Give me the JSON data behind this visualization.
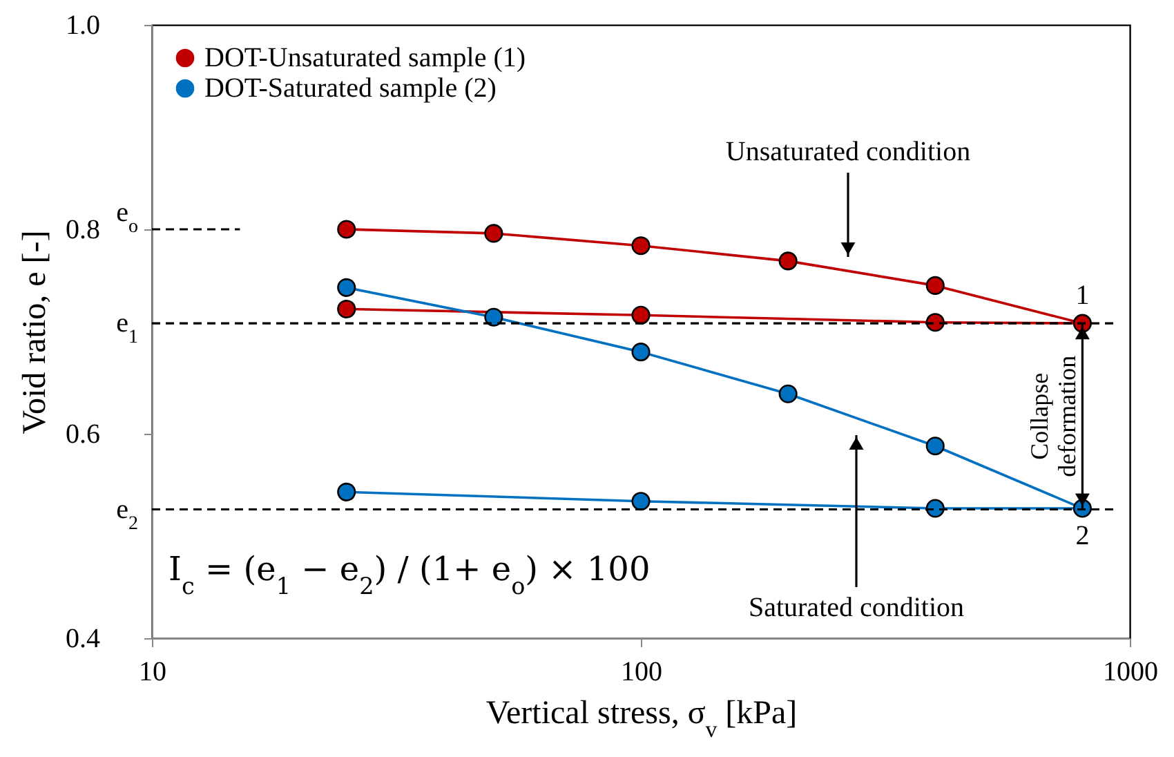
{
  "chart_data": {
    "type": "line",
    "xlabel": "Vertical stress, σ$_{v}$ [kPa]",
    "ylabel": "Void ratio, e [-]",
    "log": "x",
    "xlim": [
      10,
      1000
    ],
    "xticks": [
      10,
      100,
      1000
    ],
    "ylim": [
      0.4,
      1.0
    ],
    "yticks": [
      0.4,
      0.6,
      0.8,
      {
        "value": 1.0,
        "label": "1.0"
      }
    ],
    "legend": "top left",
    "marker": "circle",
    "line_style": "solid",
    "series": [
      {
        "name": "DOT-Unsaturated sample (1)",
        "color": "#c00000",
        "x": [
          25,
          50,
          100,
          200,
          400,
          800,
          400,
          100,
          25
        ],
        "values": [
          0.8,
          0.796,
          0.784,
          0.769,
          0.745,
          0.708,
          0.709,
          0.716,
          0.722
        ]
      },
      {
        "name": "DOT-Saturated sample (2)",
        "color": "#0070c0",
        "x": [
          25,
          50,
          100,
          200,
          400,
          800,
          400,
          100,
          25
        ],
        "values": [
          0.743,
          0.714,
          0.68,
          0.639,
          0.588,
          0.527,
          0.527,
          0.534,
          0.543
        ]
      }
    ],
    "ref_lines": [
      {
        "axis": "y",
        "value": 0.8,
        "label": "e$_{o}$",
        "color": "#000000",
        "line_style": "dashed"
      },
      {
        "axis": "y",
        "value": 0.708,
        "label": "e$_{1}$",
        "color": "#000000",
        "line_style": "dashed"
      },
      {
        "axis": "y",
        "value": 0.526,
        "label": "e$_{2}$",
        "color": "#000000",
        "line_style": "dashed"
      }
    ],
    "annotations": [
      "Unsaturated condition",
      "Saturated condition",
      "Collapse deformation",
      "1",
      "2",
      "I$_{c}$ = (e$_{1}$ − e$_{2}$) / (1+ e$_{o}$) × 100"
    ]
  }
}
